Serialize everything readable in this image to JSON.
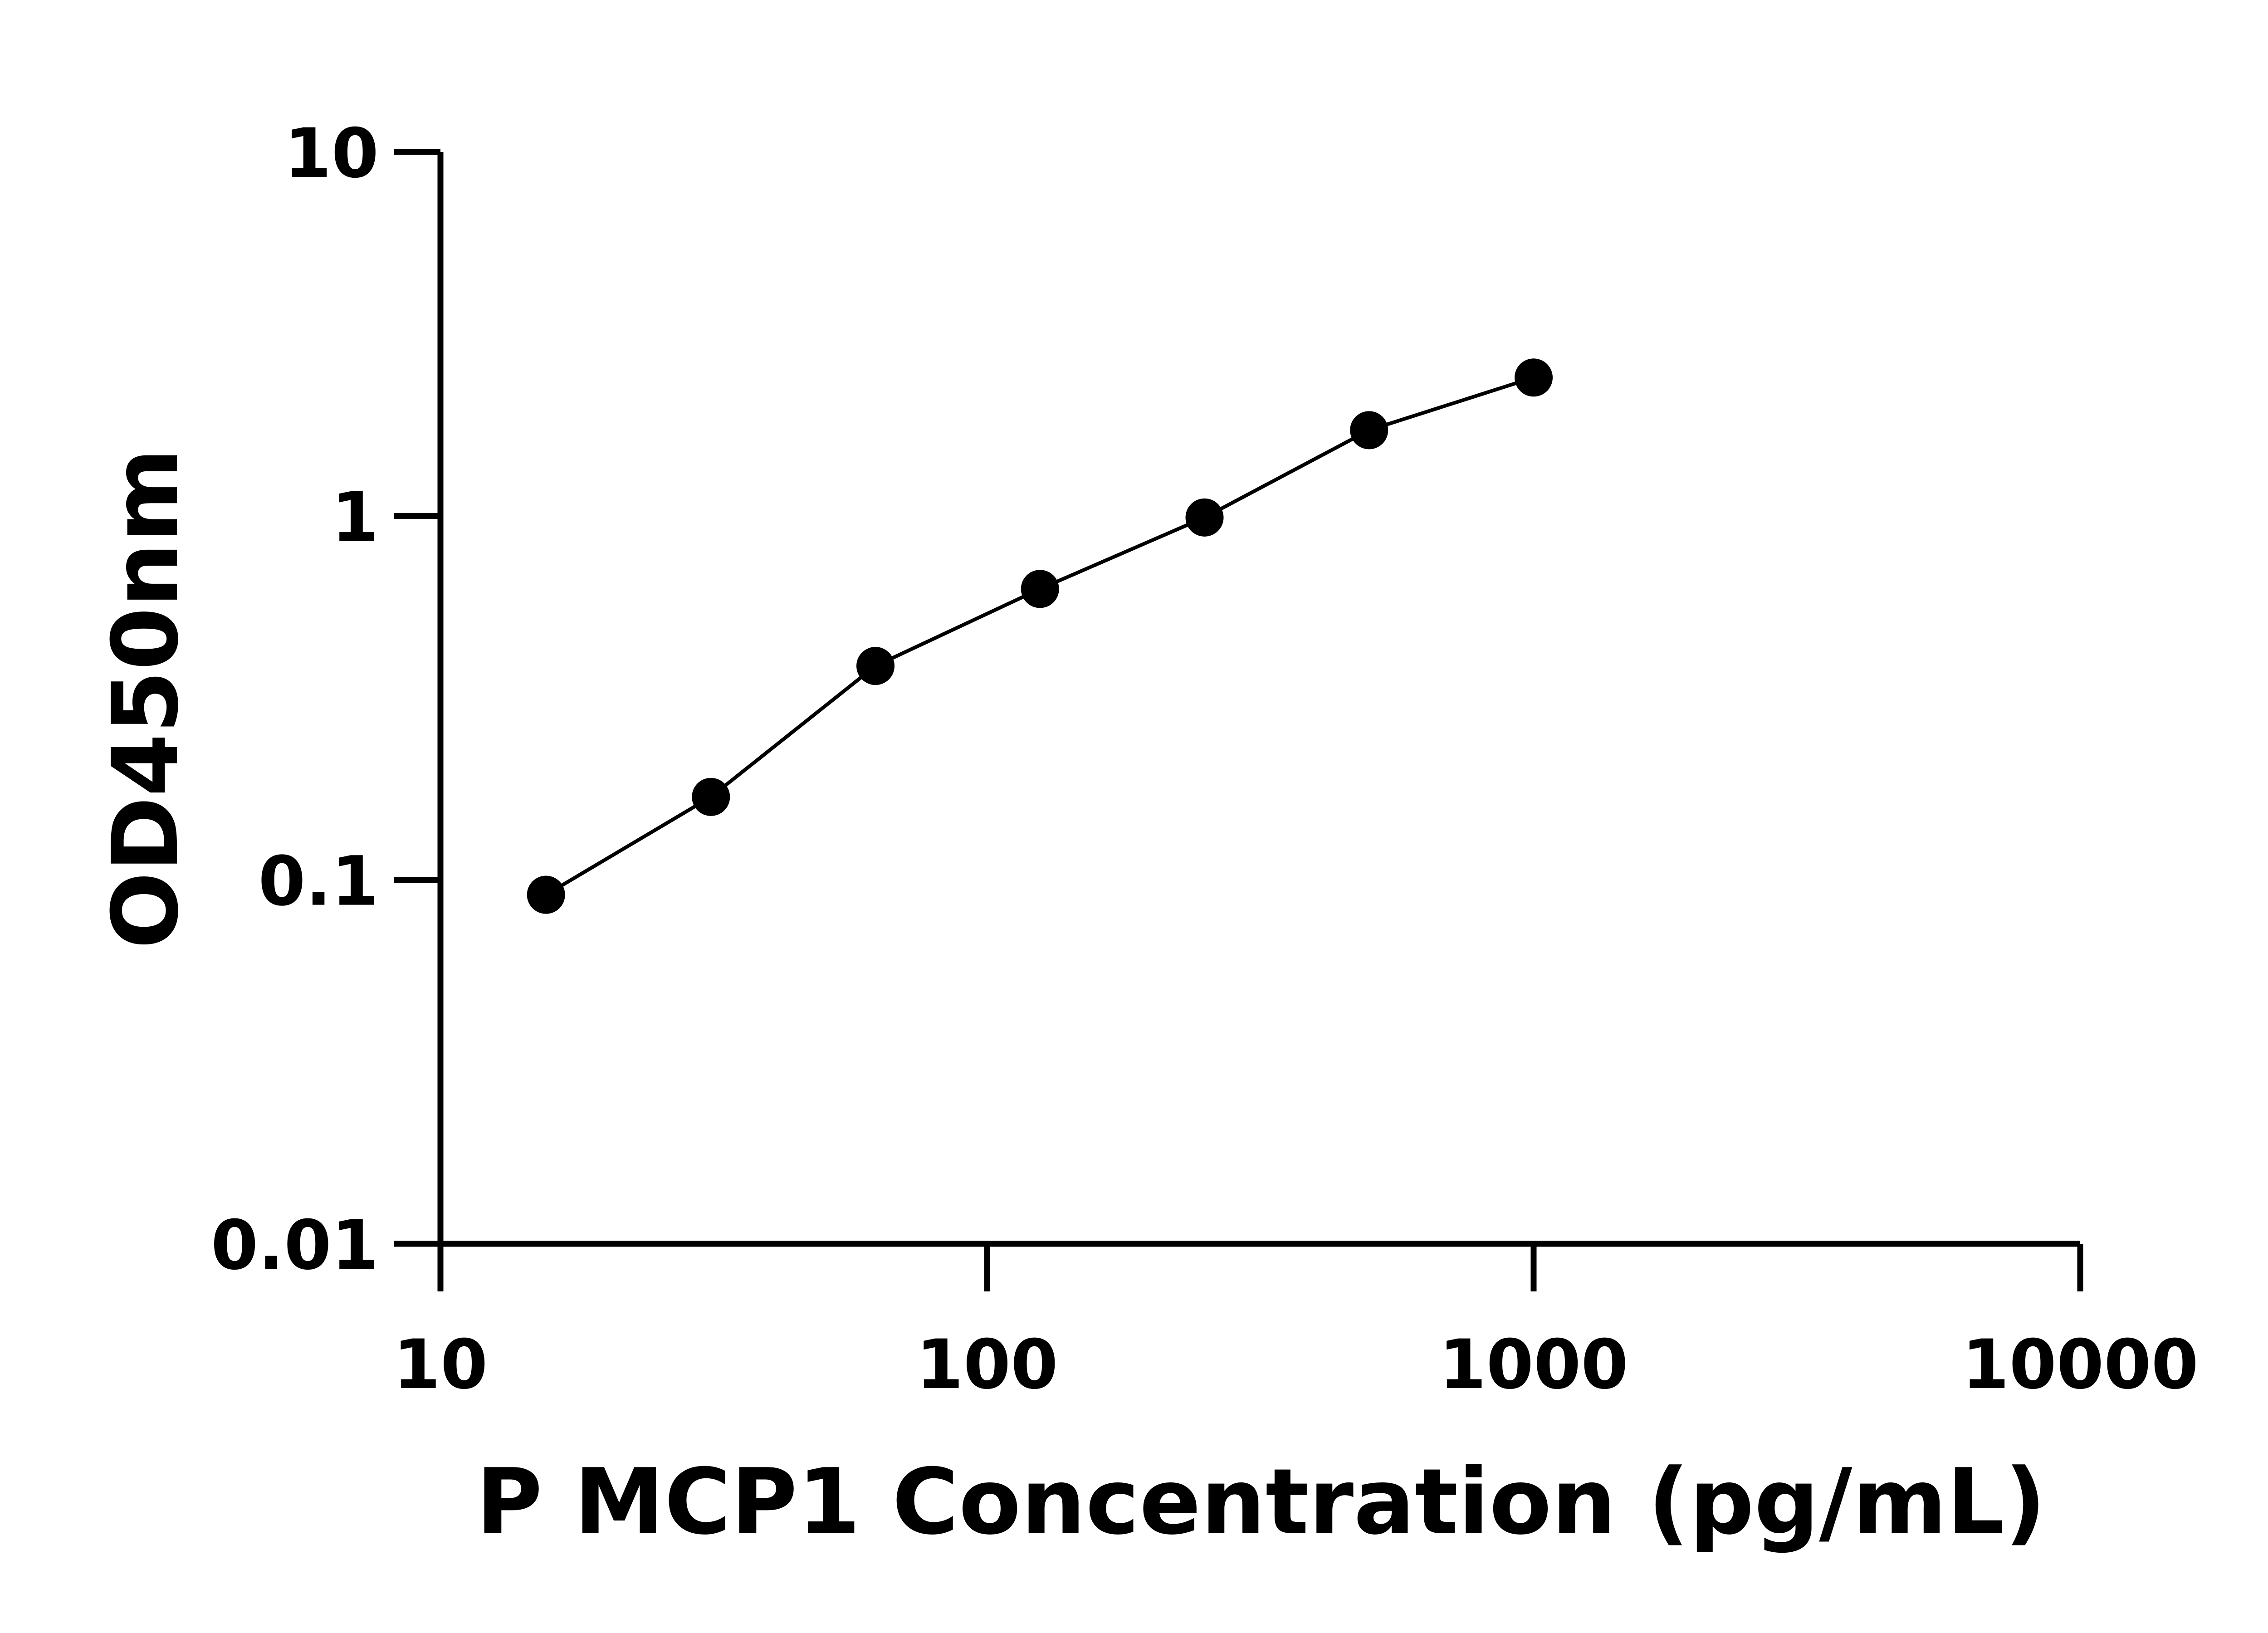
{
  "chart_data": {
    "type": "scatter",
    "title": "",
    "xlabel": "P MCP1 Concentration (pg/mL)",
    "ylabel": "OD450nm",
    "x_scale": "log",
    "y_scale": "log",
    "xlim": [
      10,
      10000
    ],
    "ylim": [
      0.01,
      10
    ],
    "x_ticks": [
      "10",
      "100",
      "1000",
      "10000"
    ],
    "y_ticks": [
      "0.01",
      "0.1",
      "1",
      "10"
    ],
    "grid": false,
    "fit_line": true,
    "marker_color": "#000000",
    "line_color": "#000000",
    "series": [
      {
        "x": [
          15.6,
          31.25,
          62.5,
          125,
          250,
          500,
          1000
        ],
        "y": [
          0.091,
          0.169,
          0.387,
          0.63,
          0.99,
          1.72,
          2.4
        ]
      }
    ]
  }
}
